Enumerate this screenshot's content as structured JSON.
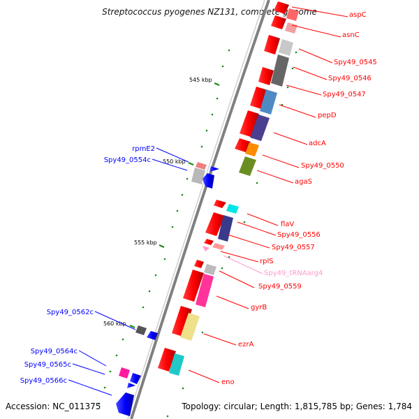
{
  "title": "Streptococcus pyogenes NZ131, complete genome",
  "footer": {
    "accession": "Accession: NC_011375",
    "summary": "Topology: circular; Length: 1,815,785 bp; Genes: 1,784"
  },
  "scale_labels": [
    "545 kbp",
    "550 kbp",
    "555 kbp",
    "560 kbp"
  ],
  "genes_plus": [
    {
      "name": "aspC",
      "color": "#ff1a1a"
    },
    {
      "name": "asnC",
      "color": "#ff1a1a"
    },
    {
      "name": "Spy49_0545",
      "color": "#ff1a1a"
    },
    {
      "name": "Spy49_0546",
      "color": "#ff1a1a"
    },
    {
      "name": "Spy49_0547",
      "color": "#ff1a1a"
    },
    {
      "name": "pepD",
      "color": "#ff1a1a"
    },
    {
      "name": "adcA",
      "color": "#ff1a1a"
    },
    {
      "name": "Spy49_0550",
      "color": "#ff1a1a"
    },
    {
      "name": "agaS",
      "color": "#ff1a1a"
    },
    {
      "name": "flaV",
      "color": "#ff1a1a"
    },
    {
      "name": "Spy49_0556",
      "color": "#ff1a1a"
    },
    {
      "name": "Spy49_0557",
      "color": "#ff1a1a"
    },
    {
      "name": "rplS",
      "color": "#ff1a1a"
    },
    {
      "name": "Spy49_tRNAarg4",
      "color": "#f48fc0"
    },
    {
      "name": "Spy49_0559",
      "color": "#ff1a1a"
    },
    {
      "name": "gyrB",
      "color": "#ff1a1a"
    },
    {
      "name": "ezrA",
      "color": "#ff1a1a"
    },
    {
      "name": "eno",
      "color": "#ff1a1a"
    }
  ],
  "genes_minus": [
    {
      "name": "rpmE2",
      "color": "#1010d0"
    },
    {
      "name": "Spy49_0554c",
      "color": "#1010d0"
    },
    {
      "name": "Spy49_0562c",
      "color": "#1010d0"
    },
    {
      "name": "Spy49_0564c",
      "color": "#1010d0"
    },
    {
      "name": "Spy49_0565c",
      "color": "#1010d0"
    },
    {
      "name": "Spy49_0566c",
      "color": "#1010d0"
    }
  ],
  "colors": {
    "plus_strand": "#ff0000",
    "minus_strand": "#0000ff",
    "tick": "#1a8a1a",
    "backbone": "#808080",
    "trna": "#ff99cc"
  }
}
